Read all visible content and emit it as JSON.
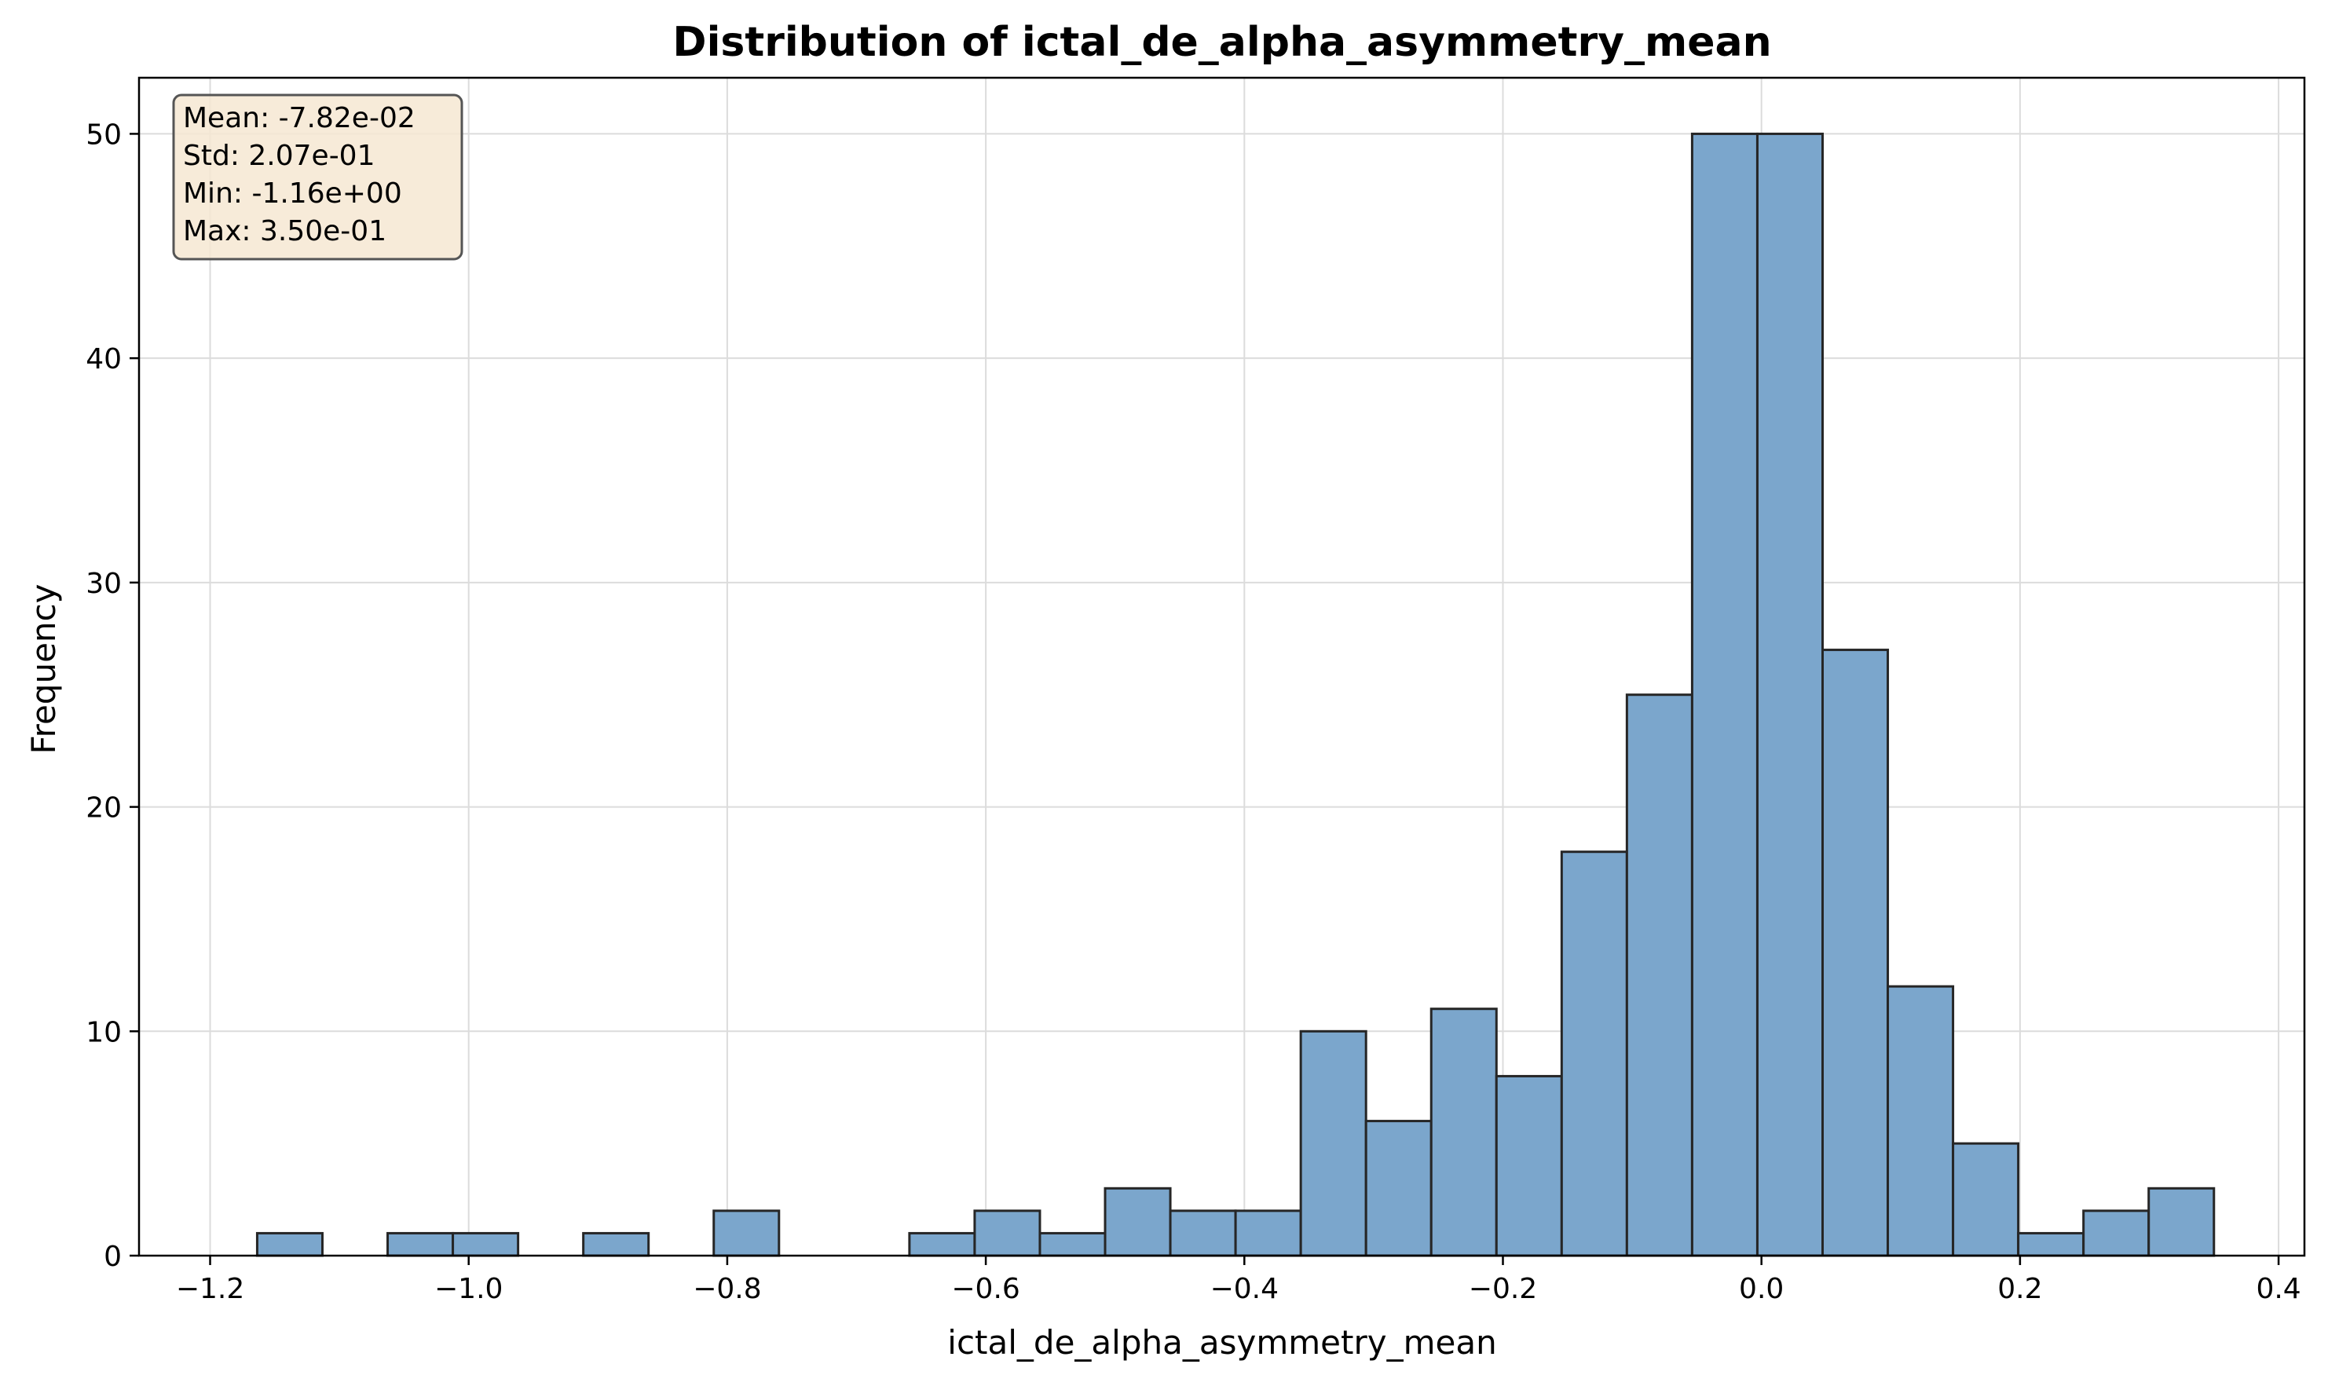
{
  "chart_data": {
    "type": "bar",
    "title": "Distribution of ictal_de_alpha_asymmetry_mean",
    "xlabel": "ictal_de_alpha_asymmetry_mean",
    "ylabel": "Frequency",
    "xlim": [
      -1.255,
      0.42
    ],
    "ylim": [
      0,
      52.5
    ],
    "grid": true,
    "x_ticks": [
      -1.2,
      -1.0,
      -0.8,
      -0.6,
      -0.4,
      -0.2,
      0.0,
      0.2,
      0.4
    ],
    "x_tick_labels": [
      "−1.2",
      "−1.0",
      "−0.8",
      "−0.6",
      "−0.4",
      "−0.2",
      "0.0",
      "0.2",
      "0.4"
    ],
    "y_ticks": [
      0,
      10,
      20,
      30,
      40,
      50
    ],
    "y_tick_labels": [
      "0",
      "10",
      "20",
      "30",
      "40",
      "50"
    ],
    "bin_range": [
      -1.1636,
      0.35
    ],
    "bin_width": 0.050453,
    "counts": [
      1,
      0,
      1,
      1,
      0,
      1,
      0,
      2,
      0,
      0,
      1,
      2,
      1,
      3,
      2,
      2,
      10,
      6,
      11,
      8,
      18,
      25,
      50,
      50,
      27,
      12,
      5,
      1,
      2,
      3
    ],
    "bar_color": "#7ba6cc",
    "edge_color": "#262626",
    "stats_box": {
      "lines": [
        "Mean: -7.82e-02",
        "Std: 2.07e-01",
        "Min: -1.16e+00",
        "Max: 3.50e-01"
      ],
      "background": "#f6e8d2",
      "placement": "top-left"
    }
  }
}
